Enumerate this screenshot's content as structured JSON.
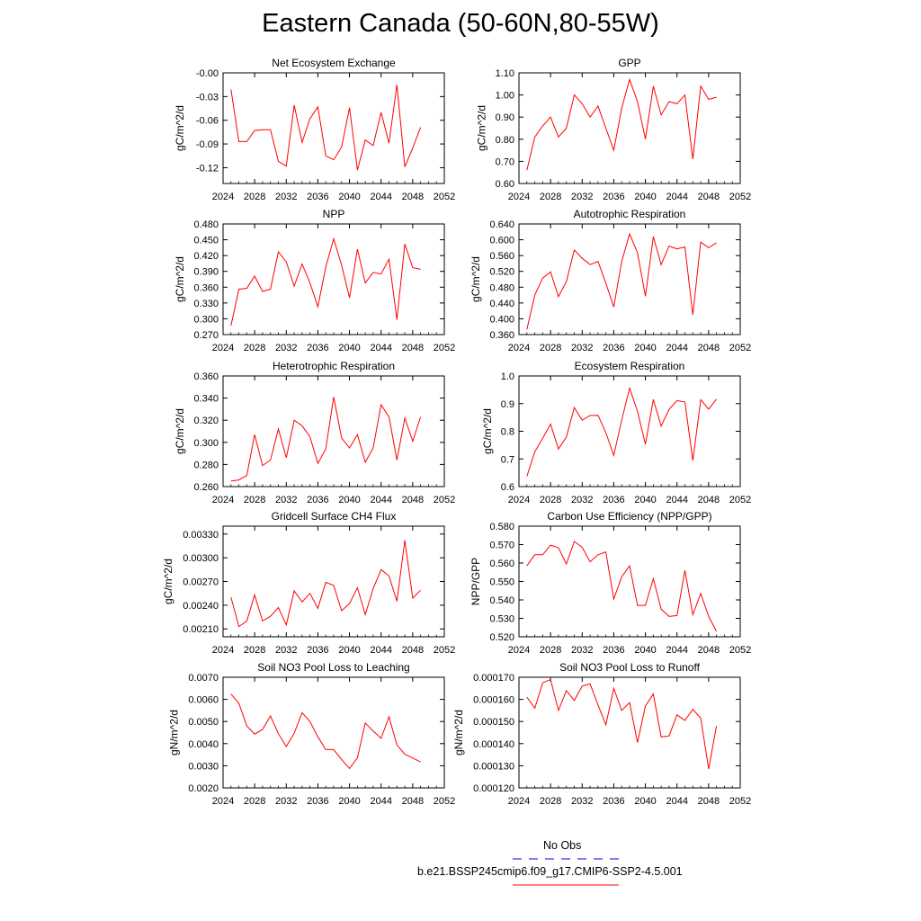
{
  "title": "Eastern Canada (50-60N,80-55W)",
  "colors": {
    "model": "#ff0000",
    "obs": "#0000ff",
    "frame": "#000000"
  },
  "legend": {
    "obs_label": "No Obs",
    "model_label": "b.e21.BSSP245cmip6.f09_g17.CMIP6-SSP2-4.5.001"
  },
  "chart_data": [
    {
      "type": "line",
      "title": "Net Ecosystem Exchange",
      "ylabel": "gC/m^2/d",
      "xlim": [
        2024,
        2052
      ],
      "xticks": [
        "2024",
        "2028",
        "2032",
        "2036",
        "2040",
        "2044",
        "2048",
        "2052"
      ],
      "ylim": [
        -0.14,
        0.0
      ],
      "yticks": [
        "-0.00",
        "-0.03",
        "-0.06",
        "-0.09",
        "-0.12"
      ],
      "x": [
        2025,
        2026,
        2027,
        2028,
        2029,
        2030,
        2031,
        2032,
        2033,
        2034,
        2035,
        2036,
        2037,
        2038,
        2039,
        2040,
        2041,
        2042,
        2043,
        2044,
        2045,
        2046,
        2047,
        2048,
        2049
      ],
      "series": [
        {
          "values": [
            -0.021,
            -0.087,
            -0.087,
            -0.073,
            -0.072,
            -0.072,
            -0.112,
            -0.118,
            -0.041,
            -0.088,
            -0.058,
            -0.043,
            -0.105,
            -0.11,
            -0.094,
            -0.044,
            -0.123,
            -0.085,
            -0.092,
            -0.05,
            -0.089,
            -0.015,
            -0.119,
            -0.095,
            -0.069
          ]
        }
      ]
    },
    {
      "type": "line",
      "title": "GPP",
      "ylabel": "gC/m^2/d",
      "xlim": [
        2024,
        2052
      ],
      "xticks": [
        "2024",
        "2028",
        "2032",
        "2036",
        "2040",
        "2044",
        "2048",
        "2052"
      ],
      "ylim": [
        0.6,
        1.1
      ],
      "yticks": [
        "0.60",
        "0.70",
        "0.80",
        "0.90",
        "1.00",
        "1.10"
      ],
      "x": [
        2025,
        2026,
        2027,
        2028,
        2029,
        2030,
        2031,
        2032,
        2033,
        2034,
        2035,
        2036,
        2037,
        2038,
        2039,
        2040,
        2041,
        2042,
        2043,
        2044,
        2045,
        2046,
        2047,
        2048,
        2049
      ],
      "series": [
        {
          "values": [
            0.66,
            0.81,
            0.86,
            0.9,
            0.81,
            0.85,
            1.0,
            0.96,
            0.9,
            0.95,
            0.85,
            0.75,
            0.94,
            1.07,
            0.97,
            0.8,
            1.04,
            0.91,
            0.97,
            0.96,
            1.0,
            0.71,
            1.04,
            0.98,
            0.99
          ]
        }
      ]
    },
    {
      "type": "line",
      "title": "NPP",
      "ylabel": "gC/m^2/d",
      "xlim": [
        2024,
        2052
      ],
      "xticks": [
        "2024",
        "2028",
        "2032",
        "2036",
        "2040",
        "2044",
        "2048",
        "2052"
      ],
      "ylim": [
        0.27,
        0.48
      ],
      "yticks": [
        "0.270",
        "0.300",
        "0.330",
        "0.360",
        "0.390",
        "0.420",
        "0.450",
        "0.480"
      ],
      "x": [
        2025,
        2026,
        2027,
        2028,
        2029,
        2030,
        2031,
        2032,
        2033,
        2034,
        2035,
        2036,
        2037,
        2038,
        2039,
        2040,
        2041,
        2042,
        2043,
        2044,
        2045,
        2046,
        2047,
        2048,
        2049
      ],
      "series": [
        {
          "values": [
            0.287,
            0.356,
            0.358,
            0.381,
            0.352,
            0.356,
            0.427,
            0.408,
            0.362,
            0.404,
            0.368,
            0.323,
            0.398,
            0.452,
            0.402,
            0.34,
            0.432,
            0.368,
            0.388,
            0.385,
            0.413,
            0.298,
            0.442,
            0.397,
            0.394
          ]
        }
      ]
    },
    {
      "type": "line",
      "title": "Autotrophic Respiration",
      "ylabel": "gC/m^2/d",
      "xlim": [
        2024,
        2052
      ],
      "xticks": [
        "2024",
        "2028",
        "2032",
        "2036",
        "2040",
        "2044",
        "2048",
        "2052"
      ],
      "ylim": [
        0.36,
        0.64
      ],
      "yticks": [
        "0.360",
        "0.400",
        "0.440",
        "0.480",
        "0.520",
        "0.560",
        "0.600",
        "0.640"
      ],
      "x": [
        2025,
        2026,
        2027,
        2028,
        2029,
        2030,
        2031,
        2032,
        2033,
        2034,
        2035,
        2036,
        2037,
        2038,
        2039,
        2040,
        2041,
        2042,
        2043,
        2044,
        2045,
        2046,
        2047,
        2048,
        2049
      ],
      "series": [
        {
          "values": [
            0.373,
            0.46,
            0.503,
            0.519,
            0.456,
            0.494,
            0.574,
            0.553,
            0.537,
            0.545,
            0.49,
            0.43,
            0.545,
            0.615,
            0.567,
            0.457,
            0.608,
            0.537,
            0.584,
            0.577,
            0.582,
            0.41,
            0.594,
            0.58,
            0.592
          ]
        }
      ]
    },
    {
      "type": "line",
      "title": "Heterotrophic Respiration",
      "ylabel": "gC/m^2/d",
      "xlim": [
        2024,
        2052
      ],
      "xticks": [
        "2024",
        "2028",
        "2032",
        "2036",
        "2040",
        "2044",
        "2048",
        "2052"
      ],
      "ylim": [
        0.26,
        0.36
      ],
      "yticks": [
        "0.260",
        "0.280",
        "0.300",
        "0.320",
        "0.340",
        "0.360"
      ],
      "x": [
        2025,
        2026,
        2027,
        2028,
        2029,
        2030,
        2031,
        2032,
        2033,
        2034,
        2035,
        2036,
        2037,
        2038,
        2039,
        2040,
        2041,
        2042,
        2043,
        2044,
        2045,
        2046,
        2047,
        2048,
        2049
      ],
      "series": [
        {
          "values": [
            0.265,
            0.266,
            0.27,
            0.307,
            0.279,
            0.284,
            0.312,
            0.286,
            0.32,
            0.315,
            0.305,
            0.281,
            0.294,
            0.341,
            0.304,
            0.295,
            0.307,
            0.282,
            0.295,
            0.334,
            0.323,
            0.284,
            0.322,
            0.301,
            0.323
          ]
        }
      ]
    },
    {
      "type": "line",
      "title": "Ecosystem Respiration",
      "ylabel": "gC/m^2/d",
      "xlim": [
        2024,
        2052
      ],
      "xticks": [
        "2024",
        "2028",
        "2032",
        "2036",
        "2040",
        "2044",
        "2048",
        "2052"
      ],
      "ylim": [
        0.6,
        1.0
      ],
      "yticks": [
        "0.6",
        "0.7",
        "0.8",
        "0.9",
        "1.0"
      ],
      "x": [
        2025,
        2026,
        2027,
        2028,
        2029,
        2030,
        2031,
        2032,
        2033,
        2034,
        2035,
        2036,
        2037,
        2038,
        2039,
        2040,
        2041,
        2042,
        2043,
        2044,
        2045,
        2046,
        2047,
        2048,
        2049
      ],
      "series": [
        {
          "values": [
            0.637,
            0.726,
            0.775,
            0.826,
            0.736,
            0.779,
            0.886,
            0.84,
            0.857,
            0.858,
            0.795,
            0.713,
            0.84,
            0.956,
            0.872,
            0.753,
            0.915,
            0.819,
            0.879,
            0.911,
            0.906,
            0.694,
            0.914,
            0.88,
            0.916
          ]
        }
      ]
    },
    {
      "type": "line",
      "title": "Gridcell Surface CH4 Flux",
      "ylabel": "gC/m^2/d",
      "xlim": [
        2024,
        2052
      ],
      "xticks": [
        "2024",
        "2028",
        "2032",
        "2036",
        "2040",
        "2044",
        "2048",
        "2052"
      ],
      "ylim": [
        0.002,
        0.0034
      ],
      "yticks": [
        "0.00210",
        "0.00240",
        "0.00270",
        "0.00300",
        "0.00330"
      ],
      "x": [
        2025,
        2026,
        2027,
        2028,
        2029,
        2030,
        2031,
        2032,
        2033,
        2034,
        2035,
        2036,
        2037,
        2038,
        2039,
        2040,
        2041,
        2042,
        2043,
        2044,
        2045,
        2046,
        2047,
        2048,
        2049
      ],
      "series": [
        {
          "values": [
            0.0025,
            0.00213,
            0.0022,
            0.00253,
            0.0022,
            0.00226,
            0.00237,
            0.00215,
            0.00258,
            0.00244,
            0.00255,
            0.00236,
            0.00269,
            0.00265,
            0.00233,
            0.00242,
            0.00262,
            0.00228,
            0.00261,
            0.00285,
            0.00277,
            0.00245,
            0.00322,
            0.00249,
            0.00259
          ]
        }
      ]
    },
    {
      "type": "line",
      "title": "Carbon Use Efficiency (NPP/GPP)",
      "ylabel": "NPP/GPP",
      "xlim": [
        2024,
        2052
      ],
      "xticks": [
        "2024",
        "2028",
        "2032",
        "2036",
        "2040",
        "2044",
        "2048",
        "2052"
      ],
      "ylim": [
        0.52,
        0.58
      ],
      "yticks": [
        "0.520",
        "0.530",
        "0.540",
        "0.550",
        "0.560",
        "0.570",
        "0.580"
      ],
      "x": [
        2025,
        2026,
        2027,
        2028,
        2029,
        2030,
        2031,
        2032,
        2033,
        2034,
        2035,
        2036,
        2037,
        2038,
        2039,
        2040,
        2041,
        2042,
        2043,
        2044,
        2045,
        2046,
        2047,
        2048,
        2049
      ],
      "series": [
        {
          "values": [
            0.5585,
            0.5645,
            0.5645,
            0.5697,
            0.5683,
            0.5595,
            0.5717,
            0.5685,
            0.5607,
            0.5645,
            0.566,
            0.5405,
            0.5525,
            0.5585,
            0.537,
            0.537,
            0.5515,
            0.535,
            0.531,
            0.5315,
            0.556,
            0.532,
            0.5435,
            0.531,
            0.523
          ]
        }
      ]
    },
    {
      "type": "line",
      "title": "Soil NO3 Pool Loss to Leaching",
      "ylabel": "gN/m^2/d",
      "xlim": [
        2024,
        2052
      ],
      "xticks": [
        "2024",
        "2028",
        "2032",
        "2036",
        "2040",
        "2044",
        "2048",
        "2052"
      ],
      "ylim": [
        0.002,
        0.007
      ],
      "yticks": [
        "0.0020",
        "0.0030",
        "0.0040",
        "0.0050",
        "0.0060",
        "0.0070"
      ],
      "x": [
        2025,
        2026,
        2027,
        2028,
        2029,
        2030,
        2031,
        2032,
        2033,
        2034,
        2035,
        2036,
        2037,
        2038,
        2039,
        2040,
        2041,
        2042,
        2043,
        2044,
        2045,
        2046,
        2047,
        2048,
        2049
      ],
      "series": [
        {
          "values": [
            0.00624,
            0.00582,
            0.0048,
            0.00443,
            0.00464,
            0.00525,
            0.00445,
            0.00387,
            0.00447,
            0.0054,
            0.005,
            0.00431,
            0.00373,
            0.00373,
            0.00328,
            0.00288,
            0.00336,
            0.00493,
            0.00457,
            0.00424,
            0.00521,
            0.00394,
            0.00352,
            0.00335,
            0.00317
          ]
        }
      ]
    },
    {
      "type": "line",
      "title": "Soil NO3 Pool Loss to Runoff",
      "ylabel": "gN/m^2/d",
      "xlim": [
        2024,
        2052
      ],
      "xticks": [
        "2024",
        "2028",
        "2032",
        "2036",
        "2040",
        "2044",
        "2048",
        "2052"
      ],
      "ylim": [
        0.00012,
        0.00017
      ],
      "yticks": [
        "0.000120",
        "0.000130",
        "0.000140",
        "0.000150",
        "0.000160",
        "0.000170"
      ],
      "x": [
        2025,
        2026,
        2027,
        2028,
        2029,
        2030,
        2031,
        2032,
        2033,
        2034,
        2035,
        2036,
        2037,
        2038,
        2039,
        2040,
        2041,
        2042,
        2043,
        2044,
        2045,
        2046,
        2047,
        2048,
        2049
      ],
      "series": [
        {
          "values": [
            0.000161,
            0.000156,
            0.0001675,
            0.000169,
            0.000155,
            0.000164,
            0.0001595,
            0.000166,
            0.000167,
            0.0001575,
            0.0001485,
            0.000165,
            0.000155,
            0.0001585,
            0.0001405,
            0.000157,
            0.0001625,
            0.000143,
            0.0001435,
            0.000153,
            0.0001505,
            0.0001555,
            0.0001515,
            0.0001285,
            0.000148
          ]
        }
      ]
    }
  ]
}
